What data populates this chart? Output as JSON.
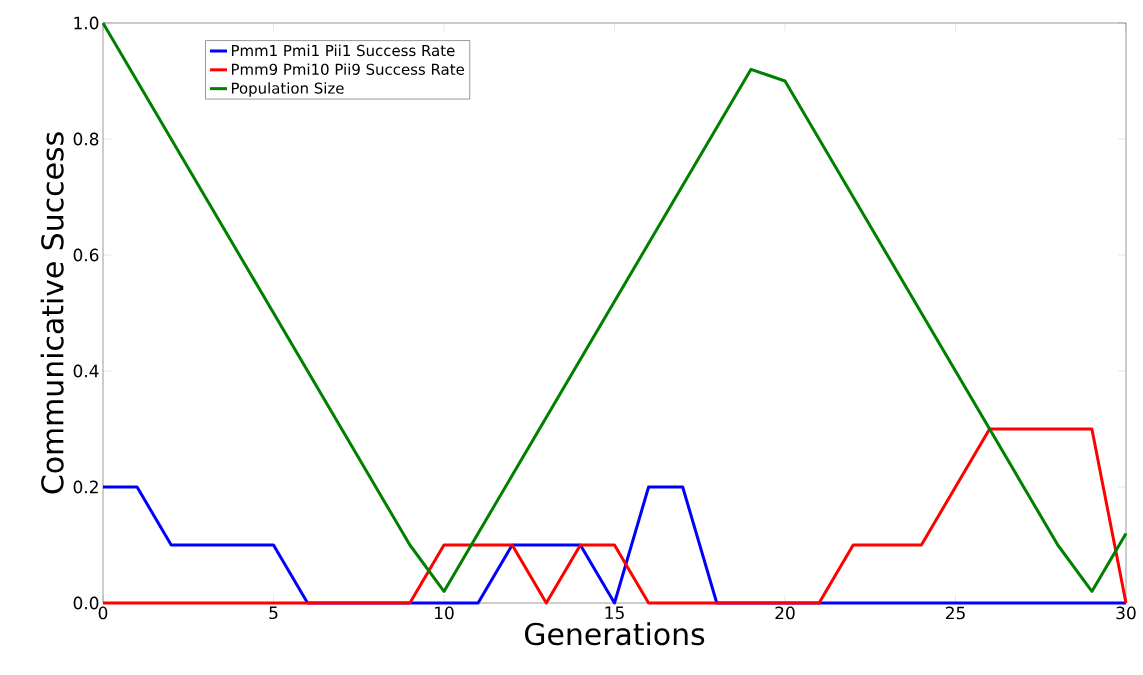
{
  "chart_data": {
    "type": "line",
    "xlabel": "Generations",
    "ylabel": "Communicative Success",
    "x": [
      0,
      1,
      2,
      3,
      4,
      5,
      6,
      7,
      8,
      9,
      10,
      11,
      12,
      13,
      14,
      15,
      16,
      17,
      18,
      19,
      20,
      21,
      22,
      23,
      24,
      25,
      26,
      27,
      28,
      29,
      30
    ],
    "series": [
      {
        "name": "Pmm1 Pmi1 Pii1 Success Rate",
        "color": "#0000ff",
        "values": [
          0.2,
          0.2,
          0.1,
          0.1,
          0.1,
          0.1,
          0,
          0,
          0,
          0,
          0,
          0,
          0.1,
          0.1,
          0.1,
          0,
          0.2,
          0.2,
          0,
          0,
          0,
          0,
          0,
          0,
          0,
          0,
          0,
          0,
          0,
          0,
          0
        ]
      },
      {
        "name": "Pmm9 Pmi10 Pii9 Success Rate",
        "color": "#ff0000",
        "values": [
          0,
          0,
          0,
          0,
          0,
          0,
          0,
          0,
          0,
          0,
          0.1,
          0.1,
          0.1,
          0,
          0.1,
          0.1,
          0,
          0,
          0,
          0,
          0,
          0,
          0.1,
          0.1,
          0.1,
          0.2,
          0.3,
          0.3,
          0.3,
          0.3,
          0
        ]
      },
      {
        "name": "Population Size",
        "color": "#008000",
        "x": [
          0,
          9,
          10,
          19,
          20,
          28,
          29,
          30
        ],
        "values": [
          1.0,
          0.1,
          0.02,
          0.92,
          0.9,
          0.1,
          0.02,
          0.12
        ]
      }
    ],
    "xlim": [
      0,
      30
    ],
    "ylim": [
      0,
      1.0
    ],
    "xticks": [
      0,
      5,
      10,
      15,
      20,
      25,
      30
    ],
    "yticks": [
      {
        "value": 0,
        "label": "0.0"
      },
      {
        "value": 0.2,
        "label": "0.2"
      },
      {
        "value": 0.4,
        "label": "0.4"
      },
      {
        "value": 0.6,
        "label": "0.6"
      },
      {
        "value": 0.8,
        "label": "0.8"
      },
      {
        "value": 1.0,
        "label": "1.0"
      }
    ],
    "grid": false,
    "legend": "top left",
    "line_style": "solid",
    "marker": "none"
  }
}
